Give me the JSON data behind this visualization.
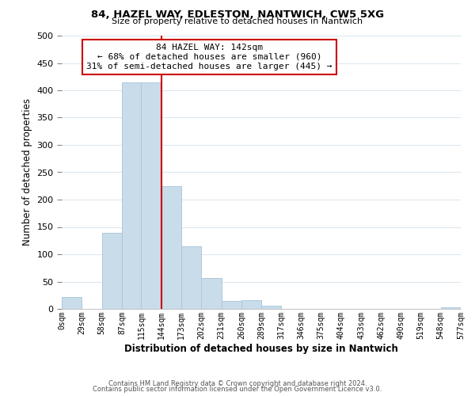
{
  "title": "84, HAZEL WAY, EDLESTON, NANTWICH, CW5 5XG",
  "subtitle": "Size of property relative to detached houses in Nantwich",
  "xlabel": "Distribution of detached houses by size in Nantwich",
  "ylabel": "Number of detached properties",
  "bar_color": "#c8dcea",
  "bar_edge_color": "#b0c8dc",
  "bin_edges": [
    0,
    29,
    58,
    87,
    115,
    144,
    173,
    202,
    231,
    260,
    289,
    317,
    346,
    375,
    404,
    433,
    462,
    490,
    519,
    548,
    577
  ],
  "bar_heights": [
    22,
    0,
    139,
    415,
    415,
    224,
    115,
    57,
    14,
    16,
    6,
    0,
    0,
    0,
    0,
    0,
    0,
    0,
    0,
    3
  ],
  "tick_labels": [
    "0sqm",
    "29sqm",
    "58sqm",
    "87sqm",
    "115sqm",
    "144sqm",
    "173sqm",
    "202sqm",
    "231sqm",
    "260sqm",
    "289sqm",
    "317sqm",
    "346sqm",
    "375sqm",
    "404sqm",
    "433sqm",
    "462sqm",
    "490sqm",
    "519sqm",
    "548sqm",
    "577sqm"
  ],
  "ylim": [
    0,
    500
  ],
  "yticks": [
    0,
    50,
    100,
    150,
    200,
    250,
    300,
    350,
    400,
    450,
    500
  ],
  "property_line_x": 144,
  "property_line_color": "#cc0000",
  "annotation_title": "84 HAZEL WAY: 142sqm",
  "annotation_line1": "← 68% of detached houses are smaller (960)",
  "annotation_line2": "31% of semi-detached houses are larger (445) →",
  "annotation_box_color": "#ffffff",
  "annotation_box_edge": "#cc0000",
  "footer_line1": "Contains HM Land Registry data © Crown copyright and database right 2024.",
  "footer_line2": "Contains public sector information licensed under the Open Government Licence v3.0.",
  "background_color": "#ffffff",
  "grid_color": "#dde8f0"
}
